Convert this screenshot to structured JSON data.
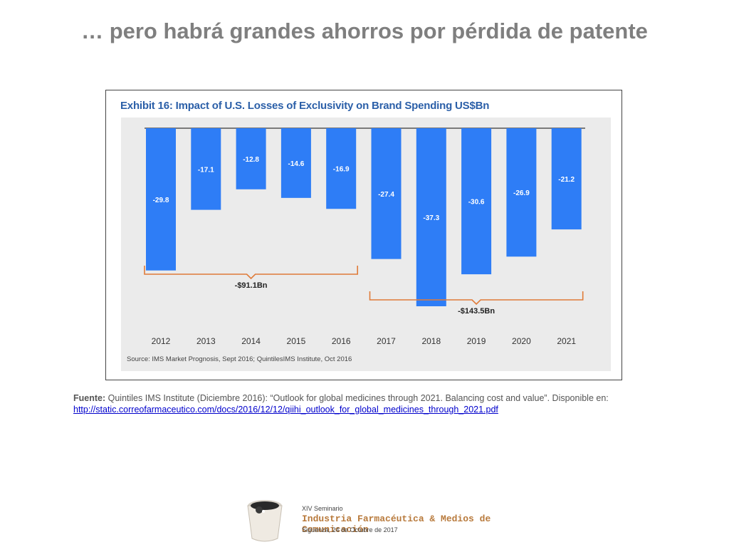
{
  "slide": {
    "title": "… pero habrá grandes ahorros por pérdida de patente"
  },
  "exhibit": {
    "title": "Exhibit 16: Impact of U.S. Losses of Exclusivity on Brand Spending US$Bn",
    "source": "Source: IMS Market Prognosis, Sept 2016; QuintilesIMS Institute, Oct 2016"
  },
  "chart_data": {
    "type": "bar",
    "title": "Exhibit 16: Impact of U.S. Losses of Exclusivity on Brand Spending US$Bn",
    "categories": [
      "2012",
      "2013",
      "2014",
      "2015",
      "2016",
      "2017",
      "2018",
      "2019",
      "2020",
      "2021"
    ],
    "values": [
      -29.8,
      -17.1,
      -12.8,
      -14.6,
      -16.9,
      -27.4,
      -37.3,
      -30.6,
      -26.9,
      -21.2
    ],
    "data_labels": [
      "-29.8",
      "-17.1",
      "-12.8",
      "-14.6",
      "-16.9",
      "-27.4",
      "-37.3",
      "-30.6",
      "-26.9",
      "-21.2"
    ],
    "ylim": [
      -40,
      0
    ],
    "bar_color": "#2e7df6",
    "bracket_color": "#e07b39",
    "groups": [
      {
        "label": "-$91.1Bn",
        "from": "2012",
        "to": "2016"
      },
      {
        "label": "-$143.5Bn",
        "from": "2017",
        "to": "2021"
      }
    ],
    "grid": false,
    "legend": "none"
  },
  "footnote": {
    "label": "Fuente:",
    "text": " Quintiles IMS Institute (Diciembre 2016): “Outlook for global medicines through 2021. Balancing cost and value”. Disponible en: ",
    "link": "http://static.correofarmaceutico.com/docs/2016/12/12/qiihi_outlook_for_global_medicines_through_2021.pdf"
  },
  "logo": {
    "line1": "XIV Seminario",
    "line2": "Industria Farmacéutica & Medios de Comunicación",
    "line3": "Sigüenza, 24 de Octubre de 2017"
  }
}
